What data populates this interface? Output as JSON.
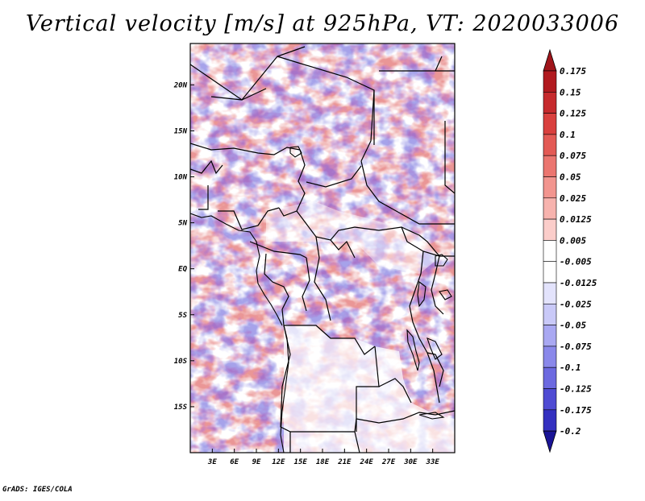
{
  "title": "Vertical velocity [m/s] at 925hPa, VT: 2020033006",
  "credit": "GrADS: IGES/COLA",
  "map": {
    "lon_range": [
      0,
      36
    ],
    "lat_range": [
      -20,
      24.5
    ],
    "lat_ticks": [
      {
        "value": 20,
        "label": "20N"
      },
      {
        "value": 15,
        "label": "15N"
      },
      {
        "value": 10,
        "label": "10N"
      },
      {
        "value": 5,
        "label": "5N"
      },
      {
        "value": 0,
        "label": "EQ"
      },
      {
        "value": -5,
        "label": "5S"
      },
      {
        "value": -10,
        "label": "10S"
      },
      {
        "value": -15,
        "label": "15S"
      }
    ],
    "lon_ticks": [
      {
        "value": 3,
        "label": "3E"
      },
      {
        "value": 6,
        "label": "6E"
      },
      {
        "value": 9,
        "label": "9E"
      },
      {
        "value": 12,
        "label": "12E"
      },
      {
        "value": 15,
        "label": "15E"
      },
      {
        "value": 18,
        "label": "18E"
      },
      {
        "value": 21,
        "label": "21E"
      },
      {
        "value": 24,
        "label": "24E"
      },
      {
        "value": 27,
        "label": "27E"
      },
      {
        "value": 30,
        "label": "30E"
      },
      {
        "value": 33,
        "label": "33E"
      }
    ]
  },
  "colorbar": {
    "levels": [
      {
        "label": "0.175",
        "color": "#b11a1f"
      },
      {
        "label": "0.15",
        "color": "#c62a2d"
      },
      {
        "label": "0.125",
        "color": "#d9403e"
      },
      {
        "label": "0.1",
        "color": "#e35a55"
      },
      {
        "label": "0.075",
        "color": "#eb7670"
      },
      {
        "label": "0.05",
        "color": "#f2958f"
      },
      {
        "label": "0.025",
        "color": "#f7b3ae"
      },
      {
        "label": "0.0125",
        "color": "#fbcdca"
      },
      {
        "label": "0.005",
        "color": "#fde4e2"
      },
      {
        "label": "-0.005",
        "color": "#ffffff"
      },
      {
        "label": "-0.0125",
        "color": "#e3e3fc"
      },
      {
        "label": "-0.025",
        "color": "#c9c9f8"
      },
      {
        "label": "-0.05",
        "color": "#a9a8f2"
      },
      {
        "label": "-0.075",
        "color": "#8a88ea"
      },
      {
        "label": "-0.1",
        "color": "#6c69e0"
      },
      {
        "label": "-0.125",
        "color": "#4f4bd3"
      },
      {
        "label": "-0.175",
        "color": "#3430c0"
      },
      {
        "label": "-0.2",
        "color": "#1f1aa8"
      }
    ],
    "top_color": "#a0151b",
    "bottom_color": "#1a1496"
  }
}
